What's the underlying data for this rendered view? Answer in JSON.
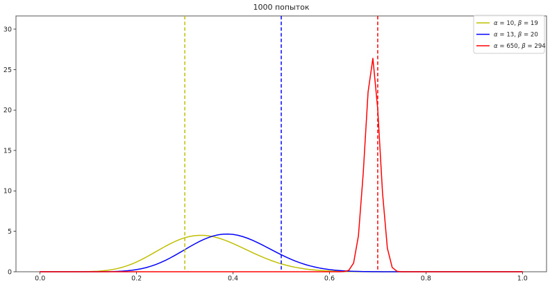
{
  "chart_data": {
    "type": "line",
    "title": "1000 попыток",
    "xlabel": "",
    "ylabel": "",
    "xlim": [
      -0.05,
      1.05
    ],
    "ylim": [
      0,
      31.65
    ],
    "xticks": [
      0.0,
      0.2,
      0.4,
      0.6,
      0.8,
      1.0
    ],
    "xtick_labels": [
      "0.0",
      "0.2",
      "0.4",
      "0.6",
      "0.8",
      "1.0"
    ],
    "yticks": [
      0,
      5,
      10,
      15,
      20,
      25,
      30
    ],
    "ytick_labels": [
      "0",
      "5",
      "10",
      "15",
      "20",
      "25",
      "30"
    ],
    "grid": false,
    "legend_position": "upper right",
    "series": [
      {
        "label": "α = 10, β = 19",
        "distribution": "beta-pdf",
        "alpha": 10,
        "beta": 19,
        "color": "#bfbf00",
        "linestyle": "solid",
        "peak": {
          "x": 0.333,
          "y": 4.5
        }
      },
      {
        "label": "α = 13, β = 20",
        "distribution": "beta-pdf",
        "alpha": 13,
        "beta": 20,
        "color": "#0000ff",
        "linestyle": "solid",
        "peak": {
          "x": 0.387,
          "y": 4.66
        }
      },
      {
        "label": "α = 650, β = 294",
        "distribution": "beta-pdf",
        "alpha": 650,
        "beta": 294,
        "color": "#ff0000",
        "linestyle": "solid",
        "peak": {
          "x": 0.689,
          "y": 26.5
        }
      }
    ],
    "vlines": [
      {
        "x": 0.3,
        "color": "#bfbf00",
        "linestyle": "dashed"
      },
      {
        "x": 0.5,
        "color": "#0000ff",
        "linestyle": "dashed"
      },
      {
        "x": 0.7,
        "color": "#ff0000",
        "linestyle": "dashed"
      }
    ],
    "x_domain": [
      0,
      1
    ],
    "x_samples": 101
  },
  "style_colors": {
    "spine": "#555555",
    "tick": "#444444",
    "legend_border": "#cccccc",
    "legend_bg": "rgba(255,255,255,0.85)"
  }
}
